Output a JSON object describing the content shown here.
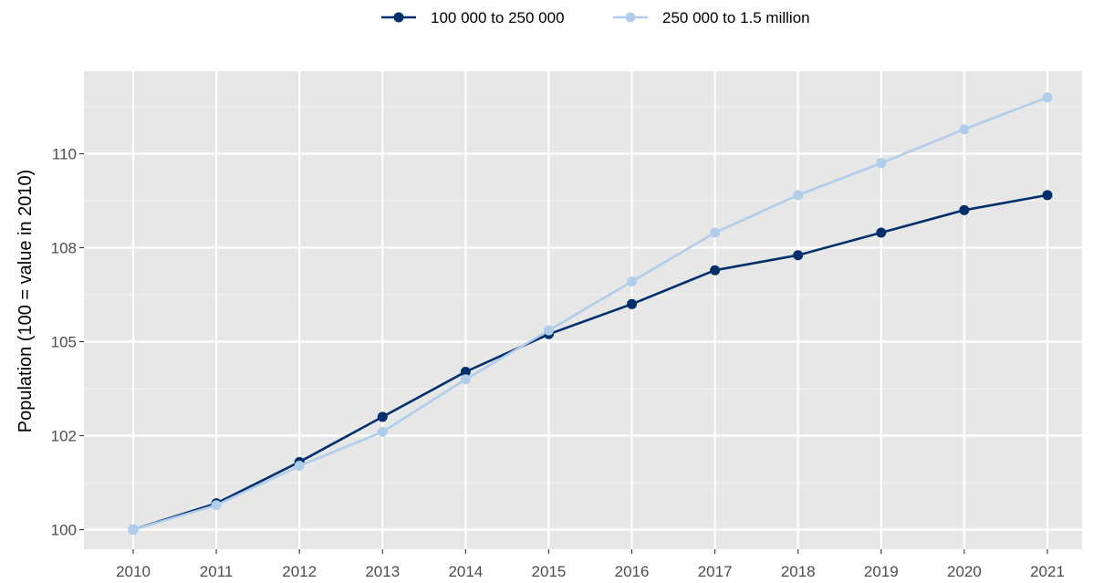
{
  "chart_data": {
    "type": "line",
    "categories": [
      "2010",
      "2011",
      "2012",
      "2013",
      "2014",
      "2015",
      "2016",
      "2017",
      "2018",
      "2019",
      "2020",
      "2021"
    ],
    "series": [
      {
        "name": "100 000 to 250 000",
        "color": "#002f6c",
        "values": [
          100.0,
          100.7,
          101.8,
          103.0,
          104.2,
          105.2,
          106.0,
          106.9,
          107.3,
          107.9,
          108.5,
          108.9
        ]
      },
      {
        "name": "250 000 to 1.5 million",
        "color": "#b1cdec",
        "values": [
          100.0,
          100.65,
          101.7,
          102.6,
          104.0,
          105.3,
          106.6,
          107.9,
          108.9,
          109.75,
          110.65,
          111.5
        ]
      }
    ],
    "xlabel": "",
    "ylabel": "Population (100 = value in 2010)",
    "ylim": [
      99.5,
      112.0
    ],
    "yticks": [
      100,
      102.5,
      105,
      107.5,
      110
    ],
    "ytick_labels": [
      "100",
      "102",
      "105",
      "108",
      "110"
    ],
    "grid": true,
    "panel_background": "#e7e7e7",
    "legend_position": "top"
  }
}
